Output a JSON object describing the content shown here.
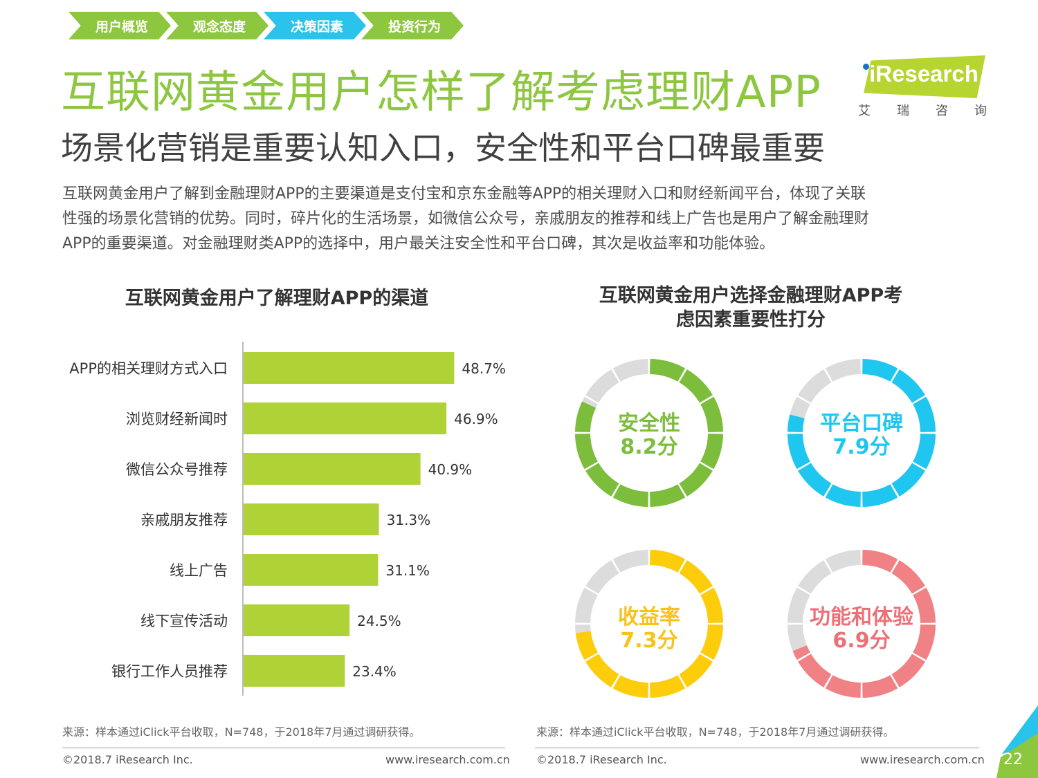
{
  "nav": {
    "tabs": [
      {
        "label": "用户概览",
        "color": "#8dc63f"
      },
      {
        "label": "观念态度",
        "color": "#8dc63f"
      },
      {
        "label": "决策因素",
        "color": "#29c3ec"
      },
      {
        "label": "投资行为",
        "color": "#8dc63f"
      }
    ]
  },
  "logo": {
    "text": "iResearch",
    "cn": [
      "艾",
      "瑞",
      "咨",
      "询"
    ]
  },
  "title": "互联网黄金用户怎样了解考虑理财APP",
  "subtitle": "场景化营销是重要认知入口，安全性和平台口碑最重要",
  "paragraph": {
    "line1": "互联网黄金用户了解到金融理财APP的主要渠道是支付宝和京东金融等APP的相关理财入口和财经新闻平台，体现了关联",
    "line2": "性强的场景化营销的优势。同时，碎片化的生活场景，如微信公众号，亲戚朋友的推荐和线上广告也是用户了解金融理财",
    "line3": "APP的重要渠道。对金融理财类APP的选择中，用户最关注安全性和平台口碑，其次是收益率和功能体验。"
  },
  "chart_data": [
    {
      "type": "bar",
      "orientation": "horizontal",
      "title": "互联网黄金用户了解理财APP的渠道",
      "categories": [
        "APP的相关理财方式入口",
        "浏览财经新闻时",
        "微信公众号推荐",
        "亲戚朋友推荐",
        "线上广告",
        "线下宣传活动",
        "银行工作人员推荐"
      ],
      "values": [
        48.7,
        46.9,
        40.9,
        31.3,
        31.1,
        24.5,
        23.4
      ],
      "value_labels": [
        "48.7%",
        "46.9%",
        "40.9%",
        "31.3%",
        "31.1%",
        "24.5%",
        "23.4%"
      ],
      "unit": "%",
      "xlim": [
        0,
        70
      ],
      "bar_color": "#afd236",
      "grid": false
    },
    {
      "type": "donut",
      "title_line1": "互联网黄金用户选择金融理财APP考",
      "title_line2": "虑因素重要性打分",
      "max": 10,
      "items": [
        {
          "name": "安全性",
          "value": 8.2,
          "score_label": "8.2分",
          "color": "#7dbd3c",
          "text_color": "#7dbd3c"
        },
        {
          "name": "平台口碑",
          "value": 7.9,
          "score_label": "7.9分",
          "color": "#1fc6f0",
          "text_color": "#1fc6f0"
        },
        {
          "name": "收益率",
          "value": 7.3,
          "score_label": "7.3分",
          "color": "#fdcd0b",
          "text_color": "#f7c21a"
        },
        {
          "name": "功能和体验",
          "value": 6.9,
          "score_label": "6.9分",
          "color": "#f08185",
          "text_color": "#ee7077"
        }
      ],
      "track_color": "#dcdcdc"
    }
  ],
  "source_left": "来源：样本通过iClick平台收取，N=748，于2018年7月通过调研获得。",
  "source_right": "来源：样本通过iClick平台收取，N=748，于2018年7月通过调研获得。",
  "footer": {
    "copyright_left": "©2018.7 iResearch Inc.",
    "url_left": "www.iresearch.com.cn",
    "copyright_right": "©2018.7 iResearch Inc.",
    "url_right": "www.iresearch.com.cn",
    "page": "22"
  }
}
